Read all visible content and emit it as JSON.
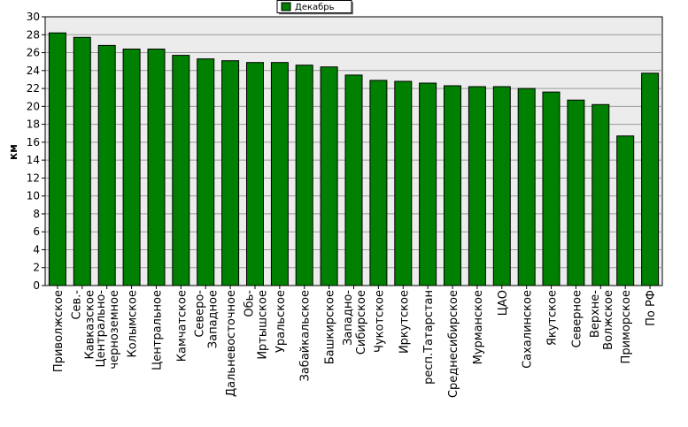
{
  "chart_data": {
    "type": "bar",
    "title": "",
    "xlabel": "",
    "ylabel": "км",
    "ylim": [
      0,
      30
    ],
    "ytick_step": 2,
    "grid": true,
    "legend_position": "top-center",
    "colors": {
      "bar": "#008000",
      "bar_stroke": "#000000",
      "plot_background": "#ececec",
      "grid": "#9a9a9a"
    },
    "categories": [
      [
        "Приволжское"
      ],
      [
        "Сев.-",
        "Кавказское"
      ],
      [
        "Центрально-",
        "черноземное"
      ],
      [
        "Колымское"
      ],
      [
        "Центральное"
      ],
      [
        "Камчатское"
      ],
      [
        "Северо-",
        "Западное"
      ],
      [
        "Дальневосточное"
      ],
      [
        "Обь-",
        "Иртышское"
      ],
      [
        "Уральское"
      ],
      [
        "Забайкальское"
      ],
      [
        "Башкирское"
      ],
      [
        "Западно-",
        "Сибирское"
      ],
      [
        "Чукотское"
      ],
      [
        "Иркутское"
      ],
      [
        "респ.Татарстан"
      ],
      [
        "Среднесибирское"
      ],
      [
        "Мурманское"
      ],
      [
        "ЦАО"
      ],
      [
        "Сахалинское"
      ],
      [
        "Якутское"
      ],
      [
        "Северное"
      ],
      [
        "Верхне-",
        "Волжское"
      ],
      [
        "Приморское"
      ],
      [
        "По РФ"
      ]
    ],
    "series": [
      {
        "name": "Декабрь",
        "values": [
          28.2,
          27.7,
          26.8,
          26.4,
          26.4,
          25.7,
          25.3,
          25.1,
          24.9,
          24.9,
          24.6,
          24.4,
          23.5,
          22.9,
          22.8,
          22.6,
          22.3,
          22.2,
          22.2,
          22.0,
          21.6,
          20.7,
          20.2,
          16.7,
          23.7
        ]
      }
    ]
  }
}
